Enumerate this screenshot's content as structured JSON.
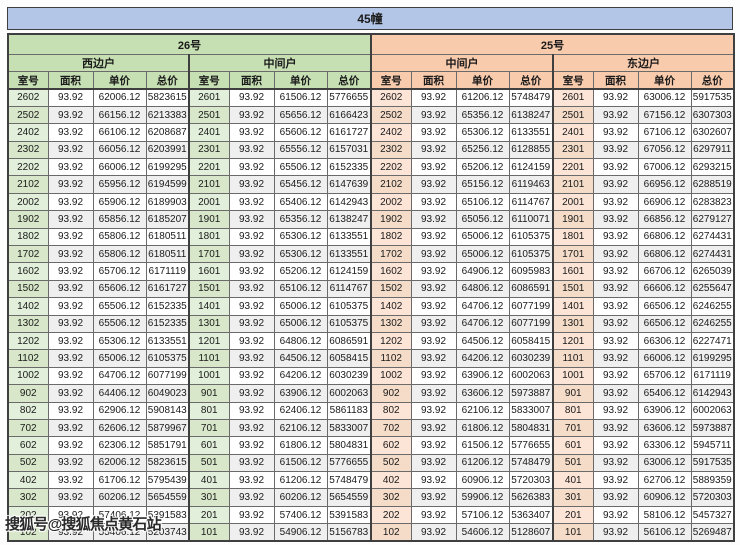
{
  "page": {
    "title": "45幢",
    "watermark": "搜狐号@搜狐焦点黄石站"
  },
  "colors": {
    "title_bg": "#b4c6e7",
    "green_header_bg": "#c6e0b4",
    "orange_header_bg": "#f8cbad",
    "green_room_bg": "#e2efda",
    "orange_room_bg": "#fce4d6",
    "stripe_bg": "#efefef",
    "border": "#6a6a6a"
  },
  "table": {
    "buildings": [
      {
        "label": "26号",
        "theme": "green"
      },
      {
        "label": "25号",
        "theme": "orange"
      }
    ],
    "groups": [
      {
        "building": "26号",
        "unit": "西边户",
        "theme": "green"
      },
      {
        "building": "26号",
        "unit": "中间户",
        "theme": "green"
      },
      {
        "building": "25号",
        "unit": "中间户",
        "theme": "orange"
      },
      {
        "building": "25号",
        "unit": "东边户",
        "theme": "orange"
      }
    ],
    "col_headers": [
      "室号",
      "面积",
      "单价",
      "总价"
    ],
    "cell_names": [
      "room-cell",
      "area-cell",
      "unit-price-cell",
      "total-price-cell"
    ],
    "rows": [
      [
        [
          "2602",
          "93.92",
          "62006.12",
          "5823615"
        ],
        [
          "2601",
          "93.92",
          "61506.12",
          "5776655"
        ],
        [
          "2602",
          "93.92",
          "61206.12",
          "5748479"
        ],
        [
          "2601",
          "93.92",
          "63006.12",
          "5917535"
        ]
      ],
      [
        [
          "2502",
          "93.92",
          "66156.12",
          "6213383"
        ],
        [
          "2501",
          "93.92",
          "65656.12",
          "6166423"
        ],
        [
          "2502",
          "93.92",
          "65356.12",
          "6138247"
        ],
        [
          "2501",
          "93.92",
          "67156.12",
          "6307303"
        ]
      ],
      [
        [
          "2402",
          "93.92",
          "66106.12",
          "6208687"
        ],
        [
          "2401",
          "93.92",
          "65606.12",
          "6161727"
        ],
        [
          "2402",
          "93.92",
          "65306.12",
          "6133551"
        ],
        [
          "2401",
          "93.92",
          "67106.12",
          "6302607"
        ]
      ],
      [
        [
          "2302",
          "93.92",
          "66056.12",
          "6203991"
        ],
        [
          "2301",
          "93.92",
          "65556.12",
          "6157031"
        ],
        [
          "2302",
          "93.92",
          "65256.12",
          "6128855"
        ],
        [
          "2301",
          "93.92",
          "67056.12",
          "6297911"
        ]
      ],
      [
        [
          "2202",
          "93.92",
          "66006.12",
          "6199295"
        ],
        [
          "2201",
          "93.92",
          "65506.12",
          "6152335"
        ],
        [
          "2202",
          "93.92",
          "65206.12",
          "6124159"
        ],
        [
          "2201",
          "93.92",
          "67006.12",
          "6293215"
        ]
      ],
      [
        [
          "2102",
          "93.92",
          "65956.12",
          "6194599"
        ],
        [
          "2101",
          "93.92",
          "65456.12",
          "6147639"
        ],
        [
          "2102",
          "93.92",
          "65156.12",
          "6119463"
        ],
        [
          "2101",
          "93.92",
          "66956.12",
          "6288519"
        ]
      ],
      [
        [
          "2002",
          "93.92",
          "65906.12",
          "6189903"
        ],
        [
          "2001",
          "93.92",
          "65406.12",
          "6142943"
        ],
        [
          "2002",
          "93.92",
          "65106.12",
          "6114767"
        ],
        [
          "2001",
          "93.92",
          "66906.12",
          "6283823"
        ]
      ],
      [
        [
          "1902",
          "93.92",
          "65856.12",
          "6185207"
        ],
        [
          "1901",
          "93.92",
          "65356.12",
          "6138247"
        ],
        [
          "1902",
          "93.92",
          "65056.12",
          "6110071"
        ],
        [
          "1901",
          "93.92",
          "66856.12",
          "6279127"
        ]
      ],
      [
        [
          "1802",
          "93.92",
          "65806.12",
          "6180511"
        ],
        [
          "1801",
          "93.92",
          "65306.12",
          "6133551"
        ],
        [
          "1802",
          "93.92",
          "65006.12",
          "6105375"
        ],
        [
          "1801",
          "93.92",
          "66806.12",
          "6274431"
        ]
      ],
      [
        [
          "1702",
          "93.92",
          "65806.12",
          "6180511"
        ],
        [
          "1701",
          "93.92",
          "65306.12",
          "6133551"
        ],
        [
          "1702",
          "93.92",
          "65006.12",
          "6105375"
        ],
        [
          "1701",
          "93.92",
          "66806.12",
          "6274431"
        ]
      ],
      [
        [
          "1602",
          "93.92",
          "65706.12",
          "6171119"
        ],
        [
          "1601",
          "93.92",
          "65206.12",
          "6124159"
        ],
        [
          "1602",
          "93.92",
          "64906.12",
          "6095983"
        ],
        [
          "1601",
          "93.92",
          "66706.12",
          "6265039"
        ]
      ],
      [
        [
          "1502",
          "93.92",
          "65606.12",
          "6161727"
        ],
        [
          "1501",
          "93.92",
          "65106.12",
          "6114767"
        ],
        [
          "1502",
          "93.92",
          "64806.12",
          "6086591"
        ],
        [
          "1501",
          "93.92",
          "66606.12",
          "6255647"
        ]
      ],
      [
        [
          "1402",
          "93.92",
          "65506.12",
          "6152335"
        ],
        [
          "1401",
          "93.92",
          "65006.12",
          "6105375"
        ],
        [
          "1402",
          "93.92",
          "64706.12",
          "6077199"
        ],
        [
          "1401",
          "93.92",
          "66506.12",
          "6246255"
        ]
      ],
      [
        [
          "1302",
          "93.92",
          "65506.12",
          "6152335"
        ],
        [
          "1301",
          "93.92",
          "65006.12",
          "6105375"
        ],
        [
          "1302",
          "93.92",
          "64706.12",
          "6077199"
        ],
        [
          "1301",
          "93.92",
          "66506.12",
          "6246255"
        ]
      ],
      [
        [
          "1202",
          "93.92",
          "65306.12",
          "6133551"
        ],
        [
          "1201",
          "93.92",
          "64806.12",
          "6086591"
        ],
        [
          "1202",
          "93.92",
          "64506.12",
          "6058415"
        ],
        [
          "1201",
          "93.92",
          "66306.12",
          "6227471"
        ]
      ],
      [
        [
          "1102",
          "93.92",
          "65006.12",
          "6105375"
        ],
        [
          "1101",
          "93.92",
          "64506.12",
          "6058415"
        ],
        [
          "1102",
          "93.92",
          "64206.12",
          "6030239"
        ],
        [
          "1101",
          "93.92",
          "66006.12",
          "6199295"
        ]
      ],
      [
        [
          "1002",
          "93.92",
          "64706.12",
          "6077199"
        ],
        [
          "1001",
          "93.92",
          "64206.12",
          "6030239"
        ],
        [
          "1002",
          "93.92",
          "63906.12",
          "6002063"
        ],
        [
          "1001",
          "93.92",
          "65706.12",
          "6171119"
        ]
      ],
      [
        [
          "902",
          "93.92",
          "64406.12",
          "6049023"
        ],
        [
          "901",
          "93.92",
          "63906.12",
          "6002063"
        ],
        [
          "902",
          "93.92",
          "63606.12",
          "5973887"
        ],
        [
          "901",
          "93.92",
          "65406.12",
          "6142943"
        ]
      ],
      [
        [
          "802",
          "93.92",
          "62906.12",
          "5908143"
        ],
        [
          "801",
          "93.92",
          "62406.12",
          "5861183"
        ],
        [
          "802",
          "93.92",
          "62106.12",
          "5833007"
        ],
        [
          "801",
          "93.92",
          "63906.12",
          "6002063"
        ]
      ],
      [
        [
          "702",
          "93.92",
          "62606.12",
          "5879967"
        ],
        [
          "701",
          "93.92",
          "62106.12",
          "5833007"
        ],
        [
          "702",
          "93.92",
          "61806.12",
          "5804831"
        ],
        [
          "701",
          "93.92",
          "63606.12",
          "5973887"
        ]
      ],
      [
        [
          "602",
          "93.92",
          "62306.12",
          "5851791"
        ],
        [
          "601",
          "93.92",
          "61806.12",
          "5804831"
        ],
        [
          "602",
          "93.92",
          "61506.12",
          "5776655"
        ],
        [
          "601",
          "93.92",
          "63306.12",
          "5945711"
        ]
      ],
      [
        [
          "502",
          "93.92",
          "62006.12",
          "5823615"
        ],
        [
          "501",
          "93.92",
          "61506.12",
          "5776655"
        ],
        [
          "502",
          "93.92",
          "61206.12",
          "5748479"
        ],
        [
          "501",
          "93.92",
          "63006.12",
          "5917535"
        ]
      ],
      [
        [
          "402",
          "93.92",
          "61706.12",
          "5795439"
        ],
        [
          "401",
          "93.92",
          "61206.12",
          "5748479"
        ],
        [
          "402",
          "93.92",
          "60906.12",
          "5720303"
        ],
        [
          "401",
          "93.92",
          "62706.12",
          "5889359"
        ]
      ],
      [
        [
          "302",
          "93.92",
          "60206.12",
          "5654559"
        ],
        [
          "301",
          "93.92",
          "60206.12",
          "5654559"
        ],
        [
          "302",
          "93.92",
          "59906.12",
          "5626383"
        ],
        [
          "301",
          "93.92",
          "60906.12",
          "5720303"
        ]
      ],
      [
        [
          "202",
          "93.92",
          "57406.12",
          "5391583"
        ],
        [
          "201",
          "93.92",
          "57406.12",
          "5391583"
        ],
        [
          "202",
          "93.92",
          "57106.12",
          "5363407"
        ],
        [
          "201",
          "93.92",
          "58106.12",
          "5457327"
        ]
      ],
      [
        [
          "102",
          "93.92",
          "55406.12",
          "5203743"
        ],
        [
          "101",
          "93.92",
          "54906.12",
          "5156783"
        ],
        [
          "102",
          "93.92",
          "54606.12",
          "5128607"
        ],
        [
          "101",
          "93.92",
          "56106.12",
          "5269487"
        ]
      ]
    ]
  }
}
